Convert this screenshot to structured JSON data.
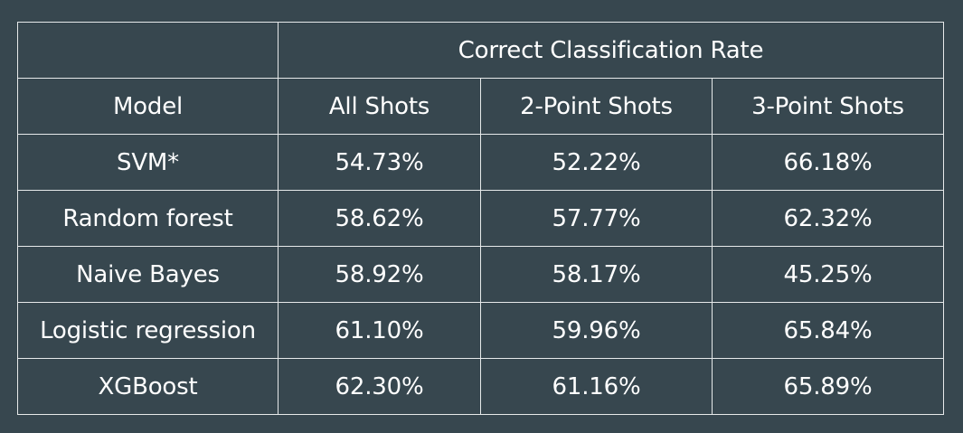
{
  "table": {
    "group_header": "Correct Classification Rate",
    "columns": [
      "Model",
      "All Shots",
      "2-Point Shots",
      "3-Point Shots"
    ],
    "rows": [
      [
        "SVM*",
        "54.73%",
        "52.22%",
        "66.18%"
      ],
      [
        "Random forest",
        "58.62%",
        "57.77%",
        "62.32%"
      ],
      [
        "Naive Bayes",
        "58.92%",
        "58.17%",
        "45.25%"
      ],
      [
        "Logistic regression",
        "61.10%",
        "59.96%",
        "65.84%"
      ],
      [
        "XGBoost",
        "62.30%",
        "61.16%",
        "65.89%"
      ]
    ]
  },
  "colors": {
    "background": "#37474f",
    "text": "#ffffff",
    "grid": "#e6e9ea"
  }
}
